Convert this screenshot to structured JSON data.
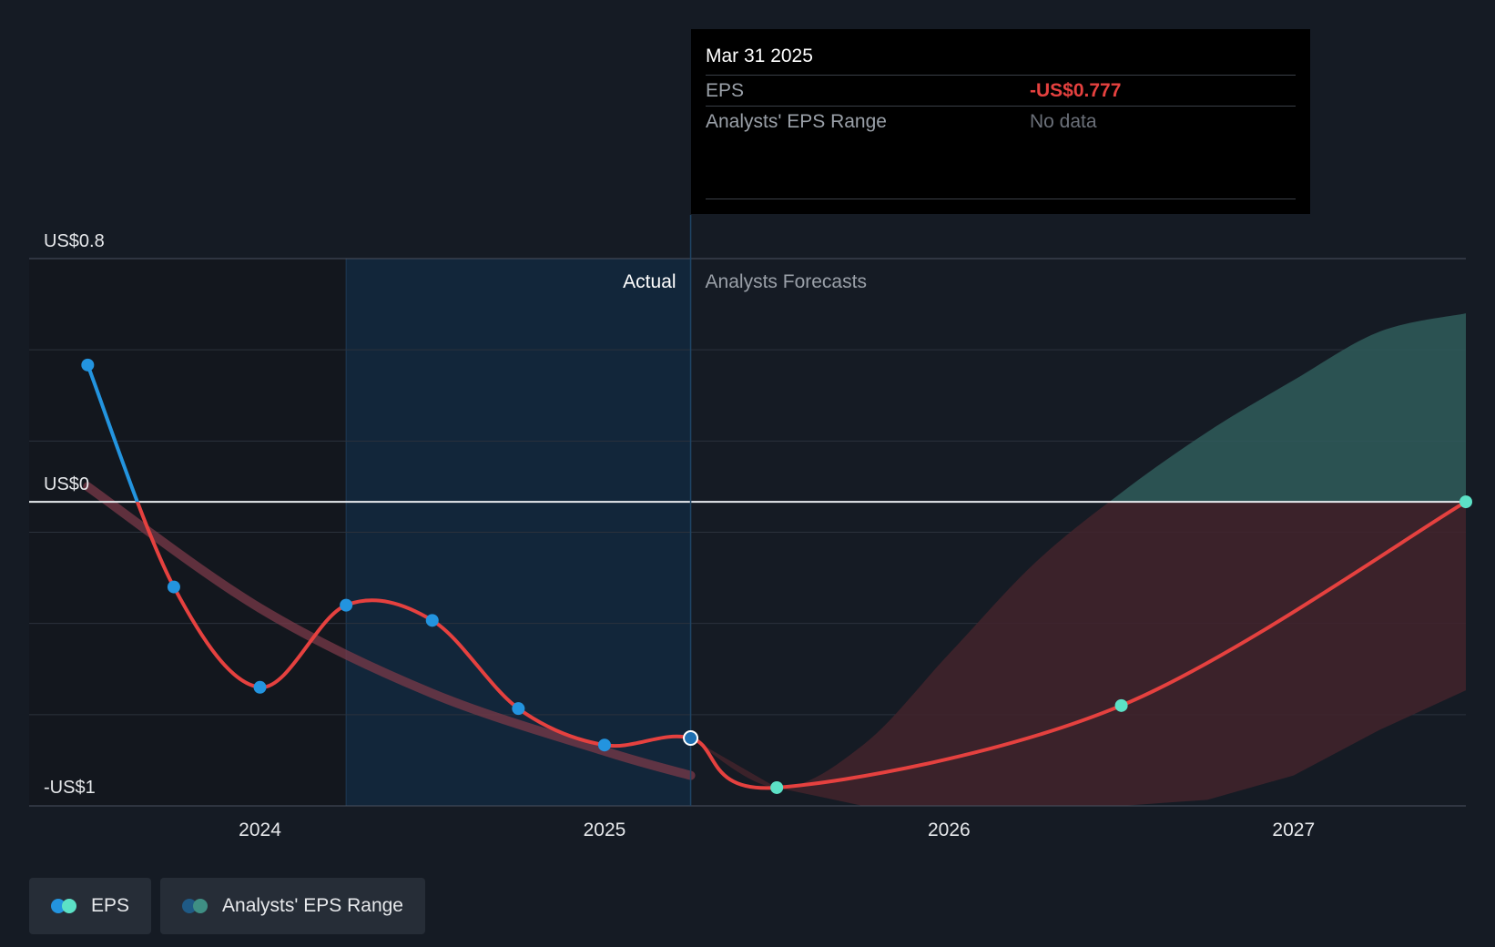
{
  "chart_data": {
    "type": "line",
    "y_ticks": [
      {
        "value": 0.8,
        "label": "US$0.8"
      },
      {
        "value": 0,
        "label": "US$0"
      },
      {
        "value": -1,
        "label": "-US$1"
      }
    ],
    "ylim": [
      -1,
      0.8
    ],
    "x_ticks": [
      {
        "value": 2024,
        "label": "2024"
      },
      {
        "value": 2025,
        "label": "2025"
      },
      {
        "value": 2026,
        "label": "2026"
      },
      {
        "value": 2027,
        "label": "2027"
      }
    ],
    "xlim": [
      2023.33,
      2027.5
    ],
    "grid": true,
    "section_labels": {
      "actual": "Actual",
      "forecast": "Analysts Forecasts"
    },
    "actual_end": 2025.25,
    "highlight_start": 2024.25,
    "series": [
      {
        "name": "EPS",
        "kind": "actual",
        "x": [
          2023.5,
          2023.75,
          2024.0,
          2024.25,
          2024.5,
          2024.75,
          2025.0,
          2025.25
        ],
        "y": [
          0.45,
          -0.28,
          -0.61,
          -0.34,
          -0.39,
          -0.68,
          -0.8,
          -0.777
        ]
      },
      {
        "name": "EPS",
        "kind": "forecast",
        "x": [
          2025.25,
          2025.5,
          2026.5,
          2027.5
        ],
        "y": [
          -0.777,
          -0.94,
          -0.67,
          0.0
        ]
      },
      {
        "name": "Analysts' EPS Range",
        "kind": "range",
        "x": [
          2025.25,
          2025.5,
          2025.75,
          2026.0,
          2026.25,
          2026.5,
          2026.75,
          2027.0,
          2027.25,
          2027.5
        ],
        "high": [
          -0.777,
          -0.94,
          -0.8,
          -0.5,
          -0.2,
          0.03,
          0.23,
          0.4,
          0.56,
          0.62
        ],
        "low": [
          -0.777,
          -0.94,
          -1.0,
          -1.0,
          -1.0,
          -1.0,
          -0.98,
          -0.9,
          -0.75,
          -0.62
        ]
      }
    ],
    "trend": {
      "x": [
        2023.5,
        2024.0,
        2024.5,
        2025.0,
        2025.25
      ],
      "y": [
        0.05,
        -0.35,
        -0.63,
        -0.82,
        -0.9
      ]
    }
  },
  "tooltip": {
    "date": "Mar 31 2025",
    "eps_label": "EPS",
    "eps_value": "-US$0.777",
    "range_label": "Analysts' EPS Range",
    "range_value": "No data"
  },
  "legend": [
    {
      "label": "EPS",
      "colors": [
        "#2394df",
        "#5ce1c6"
      ]
    },
    {
      "label": "Analysts' EPS Range",
      "colors": [
        "#1f5a85",
        "#3f8f84"
      ]
    }
  ],
  "colors": {
    "eps_negative": "#e5413f",
    "eps_positive": "#2394df",
    "forecast_dot": "#5ce1c6",
    "range_fill_pos": "#2f5c5a",
    "range_fill_neg": "#42232b",
    "actual_highlight": "#12263a",
    "tooltip_value": "#e5413f"
  }
}
